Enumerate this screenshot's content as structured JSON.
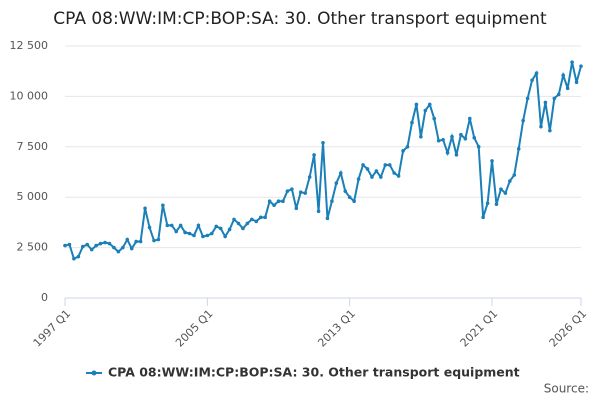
{
  "chart_data": {
    "type": "line",
    "title": "CPA 08:WW:IM:CP:BOP:SA: 30. Other transport equipment",
    "source": "Source:",
    "categories": [
      "1997 Q1",
      null,
      null,
      null,
      null,
      null,
      null,
      null,
      null,
      null,
      null,
      null,
      null,
      null,
      null,
      null,
      null,
      null,
      null,
      null,
      null,
      null,
      null,
      null,
      null,
      null,
      null,
      null,
      null,
      null,
      null,
      null,
      "2005 Q1",
      null,
      null,
      null,
      null,
      null,
      null,
      null,
      null,
      null,
      null,
      null,
      null,
      null,
      null,
      null,
      null,
      null,
      null,
      null,
      null,
      null,
      null,
      null,
      null,
      null,
      null,
      null,
      null,
      null,
      null,
      null,
      "2013 Q1",
      null,
      null,
      null,
      null,
      null,
      null,
      null,
      null,
      null,
      null,
      null,
      null,
      null,
      null,
      null,
      null,
      null,
      null,
      null,
      null,
      null,
      null,
      null,
      null,
      null,
      null,
      null,
      null,
      null,
      null,
      null,
      "2021 Q1",
      null,
      null,
      null,
      null,
      null,
      null,
      null,
      null,
      null,
      null,
      null,
      null,
      null,
      null,
      null,
      null,
      null,
      null,
      null,
      "2026 Q1"
    ],
    "series": [
      {
        "name": "CPA 08:WW:IM:CP:BOP:SA: 30. Other transport equipment",
        "color": "#1b7fb8",
        "values": [
          2600,
          2650,
          1950,
          2050,
          2550,
          2650,
          2400,
          2600,
          2700,
          2750,
          2700,
          2500,
          2300,
          2500,
          2900,
          2450,
          2800,
          2800,
          4450,
          3500,
          2850,
          2900,
          4600,
          3600,
          3600,
          3300,
          3600,
          3250,
          3200,
          3100,
          3600,
          3050,
          3100,
          3200,
          3550,
          3450,
          3050,
          3400,
          3900,
          3700,
          3450,
          3700,
          3900,
          3800,
          4000,
          4000,
          4800,
          4600,
          4800,
          4800,
          5300,
          5400,
          4450,
          5250,
          5200,
          6000,
          7100,
          4300,
          7700,
          3950,
          4800,
          5700,
          6200,
          5300,
          5000,
          4800,
          5900,
          6600,
          6400,
          6000,
          6300,
          6000,
          6600,
          6600,
          6200,
          6050,
          7300,
          7500,
          8700,
          9600,
          8000,
          9300,
          9600,
          8900,
          7800,
          7850,
          7200,
          8000,
          7100,
          8100,
          7900,
          8900,
          7950,
          7500,
          4000,
          4700,
          6800,
          4650,
          5400,
          5200,
          5800,
          6100,
          7400,
          8800,
          9900,
          10800,
          11150,
          8500,
          9700,
          8300,
          9900,
          10100,
          11050,
          10400,
          11700,
          10700,
          11500
        ]
      }
    ],
    "ylim": [
      0,
      12500
    ],
    "yticks": [
      0,
      {
        "value": 2500,
        "label": "2 500"
      },
      {
        "value": 5000,
        "label": "5 000"
      },
      {
        "value": 7500,
        "label": "7 500"
      },
      {
        "value": 10000,
        "label": "10 000"
      },
      {
        "value": 12500,
        "label": "12 500"
      }
    ],
    "grid": true
  }
}
